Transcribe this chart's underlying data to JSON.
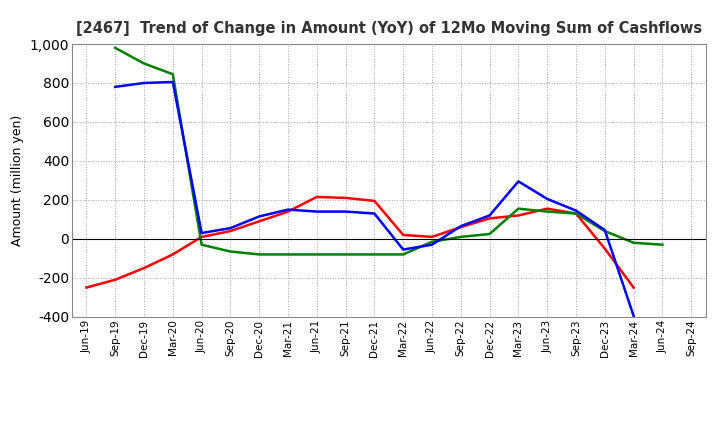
{
  "title": "[2467]  Trend of Change in Amount (YoY) of 12Mo Moving Sum of Cashflows",
  "ylabel": "Amount (million yen)",
  "x_labels": [
    "Jun-19",
    "Sep-19",
    "Dec-19",
    "Mar-20",
    "Jun-20",
    "Sep-20",
    "Dec-20",
    "Mar-21",
    "Jun-21",
    "Sep-21",
    "Dec-21",
    "Mar-22",
    "Jun-22",
    "Sep-22",
    "Dec-22",
    "Mar-23",
    "Jun-23",
    "Sep-23",
    "Dec-23",
    "Mar-24",
    "Jun-24",
    "Sep-24"
  ],
  "operating": [
    -250,
    -210,
    -150,
    -80,
    10,
    40,
    90,
    140,
    215,
    210,
    195,
    20,
    10,
    60,
    105,
    120,
    155,
    130,
    -50,
    -250,
    null,
    null
  ],
  "investing": [
    null,
    980,
    900,
    845,
    -30,
    -65,
    -80,
    -80,
    -80,
    -80,
    -80,
    -80,
    -15,
    10,
    25,
    155,
    140,
    130,
    40,
    -20,
    -30,
    null
  ],
  "free": [
    null,
    780,
    800,
    805,
    30,
    55,
    115,
    150,
    140,
    140,
    130,
    -55,
    -30,
    65,
    120,
    295,
    205,
    145,
    45,
    -395,
    null,
    null
  ],
  "operating_color": "#ff0000",
  "investing_color": "#008000",
  "free_color": "#0000ff",
  "ylim": [
    -400,
    1000
  ],
  "yticks": [
    -400,
    -200,
    0,
    200,
    400,
    600,
    800,
    1000
  ],
  "background_color": "#ffffff",
  "grid_color": "#999999"
}
